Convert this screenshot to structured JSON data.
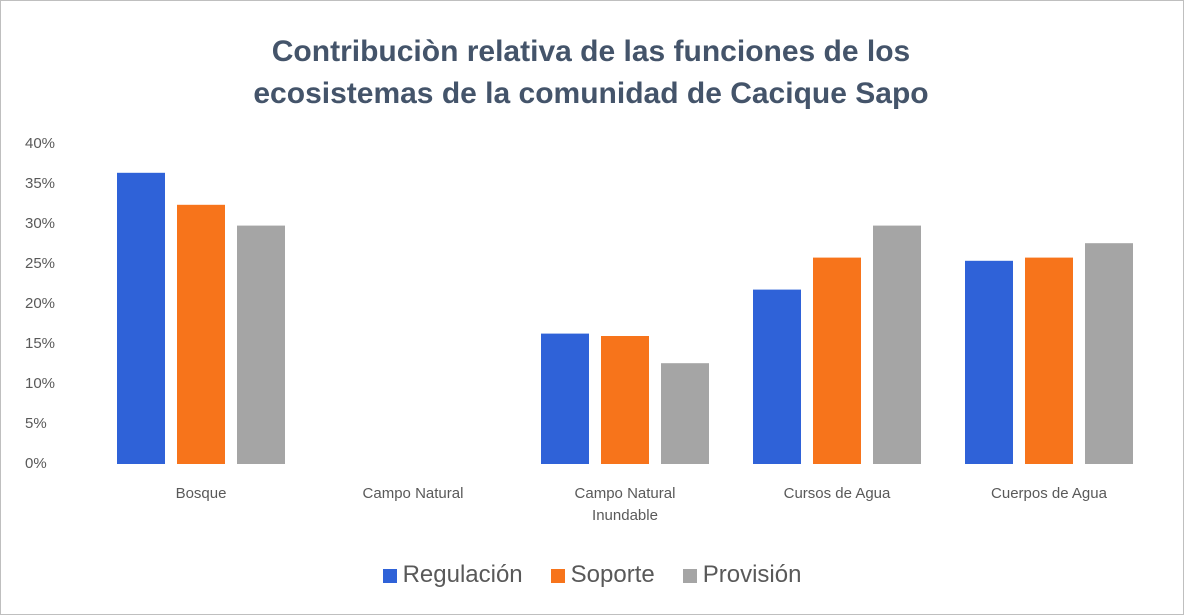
{
  "chart_data": {
    "type": "bar",
    "title": "Contribuciòn relativa de las funciones de los ecosistemas de la comunidad de Cacique Sapo",
    "categories": [
      "Bosque",
      "Campo Natural",
      "Campo Natural Inundable",
      "Cursos de Agua",
      "Cuerpos de Agua"
    ],
    "series": [
      {
        "name": "Regulación",
        "color": "#2f62d8",
        "values": [
          36.4,
          0,
          16.3,
          21.8,
          25.4
        ]
      },
      {
        "name": "Soporte",
        "color": "#f7741b",
        "values": [
          32.4,
          0,
          16,
          25.8,
          25.8
        ]
      },
      {
        "name": "Provisión",
        "color": "#a5a5a5",
        "values": [
          29.8,
          0,
          12.6,
          29.8,
          27.6
        ]
      }
    ],
    "ylim": [
      0,
      40
    ],
    "yticks": [
      {
        "value": 0,
        "label": "0%"
      },
      {
        "value": 5,
        "label": "5%"
      },
      {
        "value": 10,
        "label": "10%"
      },
      {
        "value": 15,
        "label": "15%"
      },
      {
        "value": 20,
        "label": "20%"
      },
      {
        "value": 25,
        "label": "25%"
      },
      {
        "value": 30,
        "label": "30%"
      },
      {
        "value": 35,
        "label": "35%"
      },
      {
        "value": 40,
        "label": "40%"
      }
    ],
    "grid": false,
    "legend": "bottom"
  }
}
